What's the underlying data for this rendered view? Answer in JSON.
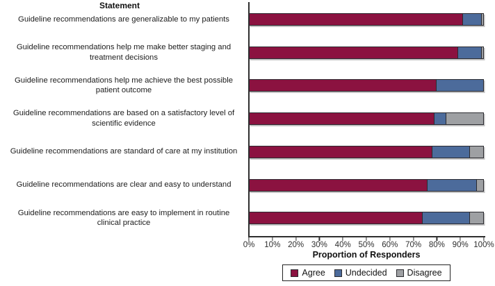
{
  "chart_data": {
    "type": "bar",
    "variant": "horizontal-stacked",
    "statement_column_title": "Statement",
    "xlabel": "Proportion of Responders",
    "xlim": [
      0,
      100
    ],
    "x_ticks": [
      "0%",
      "10%",
      "20%",
      "30%",
      "40%",
      "50%",
      "60%",
      "70%",
      "80%",
      "90%",
      "100%"
    ],
    "grid": false,
    "legend_position": "bottom",
    "categories": [
      "Guideline recommendations are generalizable to my patients",
      "Guideline recommendations help me make better staging and treatment decisions",
      "Guideline recommendations help me achieve the best possible patient outcome",
      "Guideline recommendations are based on a satisfactory level of scientific evidence",
      "Guideline recommendations are standard of care at my institution",
      "Guideline recommendations are clear and easy to understand",
      "Guideline recommendations are easy to implement in routine clinical practice"
    ],
    "series": [
      {
        "name": "Agree",
        "color": "#8B1240",
        "values": [
          91,
          89,
          80,
          79,
          78,
          76,
          74
        ]
      },
      {
        "name": "Undecided",
        "color": "#4C6B9B",
        "values": [
          8,
          10,
          20,
          5,
          16,
          21,
          20
        ]
      },
      {
        "name": "Disagree",
        "color": "#9EA0A3",
        "values": [
          1,
          1,
          0,
          16,
          6,
          3,
          6
        ]
      }
    ],
    "colors": {
      "agree": "#8B1240",
      "undecided": "#4C6B9B",
      "disagree": "#9EA0A3",
      "segment_border": "#2b2b30",
      "axis": "#2e2e2e"
    }
  }
}
